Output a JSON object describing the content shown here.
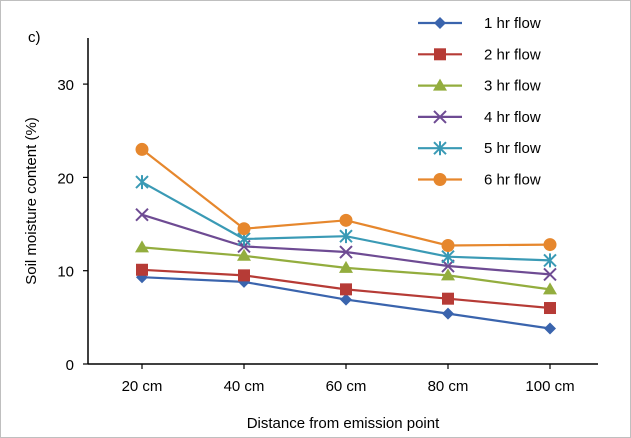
{
  "chart_data": {
    "type": "line",
    "panel_label": "c)",
    "title": "",
    "xlabel": "Distance from emission point",
    "ylabel": "Soil moisture content (%)",
    "categories": [
      "20 cm",
      "40 cm",
      "60 cm",
      "80 cm",
      "100 cm"
    ],
    "ylim": [
      0,
      30
    ],
    "yticks": [
      "0",
      "10",
      "20",
      "30"
    ],
    "grid": false,
    "legend_position": "top-right",
    "series": [
      {
        "name": "1 hr flow",
        "color": "#3a64ad",
        "marker": "diamond",
        "values": [
          9.3,
          8.8,
          6.9,
          5.4,
          3.8
        ]
      },
      {
        "name": "2 hr flow",
        "color": "#b63b36",
        "marker": "square",
        "values": [
          10.1,
          9.5,
          8.0,
          7.0,
          6.0
        ]
      },
      {
        "name": "3 hr flow",
        "color": "#93ad3e",
        "marker": "triangle",
        "values": [
          12.5,
          11.6,
          10.3,
          9.5,
          8.0
        ]
      },
      {
        "name": "4 hr flow",
        "color": "#6e4b93",
        "marker": "x",
        "values": [
          16.0,
          12.6,
          12.0,
          10.5,
          9.6
        ]
      },
      {
        "name": "5 hr flow",
        "color": "#3a9ab5",
        "marker": "asterisk",
        "values": [
          19.5,
          13.4,
          13.7,
          11.5,
          11.1
        ]
      },
      {
        "name": "6 hr flow",
        "color": "#e6872d",
        "marker": "circle",
        "values": [
          23.0,
          14.5,
          15.4,
          12.7,
          12.8
        ]
      }
    ]
  }
}
